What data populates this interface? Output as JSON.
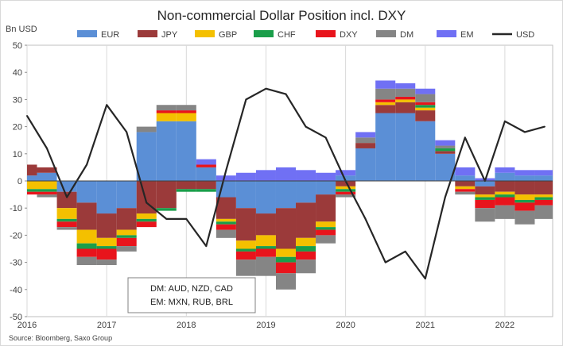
{
  "chart_data": {
    "type": "area",
    "title": "Non-commercial Dollar Position incl. DXY",
    "ylabel": "Bn USD",
    "source": "Source: Bloomberg, Saxo Group",
    "ylim": [
      -50,
      50
    ],
    "yticks": [
      -50,
      -40,
      -30,
      -20,
      -10,
      0,
      10,
      20,
      30,
      40,
      50
    ],
    "xlim": [
      2016.0,
      2022.6
    ],
    "xticks": [
      {
        "value": 2016,
        "label": "2016"
      },
      {
        "value": 2017,
        "label": "2017"
      },
      {
        "value": 2018,
        "label": "2018"
      },
      {
        "value": 2019,
        "label": "2019"
      },
      {
        "value": 2020,
        "label": "2020"
      },
      {
        "value": 2021,
        "label": "2021"
      },
      {
        "value": 2022,
        "label": "2022"
      }
    ],
    "legend_position": "top",
    "annotation": [
      "DM: AUD, NZD, CAD",
      "EM: MXN, RUB, BRL"
    ],
    "x": [
      2016.0,
      2016.25,
      2016.5,
      2016.75,
      2017.0,
      2017.25,
      2017.5,
      2017.75,
      2018.0,
      2018.25,
      2018.5,
      2018.75,
      2019.0,
      2019.25,
      2019.5,
      2019.75,
      2020.0,
      2020.25,
      2020.5,
      2020.75,
      2021.0,
      2021.25,
      2021.5,
      2021.75,
      2022.0,
      2022.25,
      2022.5
    ],
    "series": [
      {
        "name": "EUR",
        "color": "#5b8fd6",
        "kind": "bar",
        "values": [
          2,
          3,
          -4,
          -8,
          -12,
          -10,
          18,
          22,
          22,
          5,
          -6,
          -10,
          -12,
          -10,
          -8,
          -5,
          2,
          12,
          25,
          25,
          22,
          10,
          2,
          -2,
          3,
          2,
          2
        ]
      },
      {
        "name": "JPY",
        "color": "#9b3a3a",
        "kind": "bar",
        "values": [
          4,
          2,
          -6,
          -10,
          -9,
          -8,
          -12,
          -10,
          -3,
          -3,
          -8,
          -12,
          -8,
          -15,
          -13,
          -10,
          -2,
          2,
          3,
          4,
          4,
          1,
          -2,
          -3,
          -4,
          -5,
          -5
        ]
      },
      {
        "name": "GBP",
        "color": "#f4c000",
        "kind": "bar",
        "values": [
          -3,
          -3,
          -4,
          -5,
          -3,
          -2,
          -2,
          3,
          3,
          0,
          -1,
          -3,
          -4,
          -3,
          -3,
          -2,
          -1,
          0,
          1,
          1,
          1,
          0,
          -1,
          -1,
          -1,
          -2,
          -1
        ]
      },
      {
        "name": "CHF",
        "color": "#1a9e4a",
        "kind": "bar",
        "values": [
          -1,
          -1,
          -1,
          -2,
          -1,
          -1,
          -1,
          -1,
          -1,
          -1,
          -1,
          -1,
          -1,
          -2,
          -2,
          -1,
          -1,
          0,
          0,
          0,
          1,
          1,
          0,
          -1,
          -1,
          -1,
          -1
        ]
      },
      {
        "name": "DXY",
        "color": "#e8141c",
        "kind": "bar",
        "values": [
          -1,
          -1,
          -2,
          -3,
          -4,
          -3,
          -2,
          1,
          1,
          1,
          -2,
          -3,
          -3,
          -4,
          -3,
          -2,
          -1,
          0,
          1,
          1,
          1,
          0,
          -1,
          -3,
          -3,
          -3,
          -2
        ]
      },
      {
        "name": "DM",
        "color": "#858585",
        "kind": "bar",
        "values": [
          0,
          -1,
          -1,
          -3,
          -2,
          -2,
          2,
          2,
          2,
          0,
          -3,
          -6,
          -7,
          -6,
          -5,
          -3,
          -1,
          2,
          4,
          3,
          3,
          1,
          -1,
          -5,
          -5,
          -5,
          -5
        ]
      },
      {
        "name": "EM",
        "color": "#7070f4",
        "kind": "bar",
        "values": [
          0,
          0,
          0,
          0,
          0,
          0,
          0,
          0,
          0,
          2,
          2,
          3,
          4,
          5,
          4,
          3,
          2,
          2,
          3,
          2,
          2,
          2,
          3,
          1,
          2,
          2,
          2
        ]
      },
      {
        "name": "USD",
        "color": "#262626",
        "kind": "line",
        "values": [
          24,
          12,
          -6,
          6,
          28,
          18,
          -8,
          -14,
          -14,
          -24,
          4,
          30,
          34,
          32,
          20,
          16,
          0,
          -14,
          -30,
          -26,
          -36,
          -6,
          16,
          0,
          22,
          18,
          20
        ]
      }
    ]
  }
}
